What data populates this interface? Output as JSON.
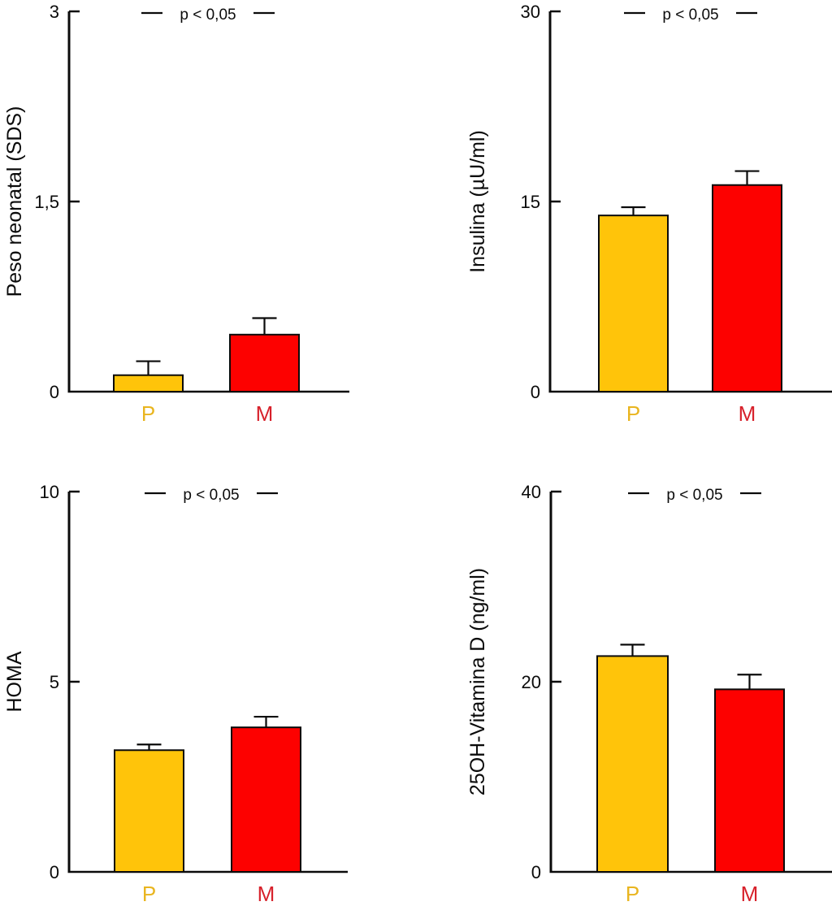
{
  "figure": {
    "background": "#ffffff",
    "axis_color": "#0b0b0b"
  },
  "chart_data": [
    {
      "type": "bar",
      "title": "",
      "xlabel": "",
      "ylabel": "Peso neonatal (SDS)",
      "categories": [
        "P",
        "M"
      ],
      "values": [
        0.13,
        0.45
      ],
      "errors_plus": [
        0.11,
        0.13
      ],
      "ylim": [
        0,
        3
      ],
      "yticks": [
        0,
        1.5,
        3
      ],
      "ytick_labels": [
        "0",
        "1,5",
        "3"
      ],
      "annotation": "p < 0,05",
      "bar_colors": [
        "#FFC40A",
        "#FD0100"
      ],
      "category_label_colors": [
        "#E9B51F",
        "#D7212B"
      ],
      "grid": false,
      "legend": "none",
      "error_direction": "up"
    },
    {
      "type": "bar",
      "title": "",
      "xlabel": "",
      "ylabel": "Insulina (µU/ml)",
      "categories": [
        "P",
        "M"
      ],
      "values": [
        13.9,
        16.3
      ],
      "errors_plus": [
        0.65,
        1.1
      ],
      "ylim": [
        0,
        30
      ],
      "yticks": [
        0,
        15,
        30
      ],
      "ytick_labels": [
        "0",
        "15",
        "30"
      ],
      "annotation": "p < 0,05",
      "bar_colors": [
        "#FFC40A",
        "#FD0100"
      ],
      "category_label_colors": [
        "#E9B51F",
        "#D7212B"
      ],
      "grid": false,
      "legend": "none",
      "error_direction": "up"
    },
    {
      "type": "bar",
      "title": "",
      "xlabel": "",
      "ylabel": "HOMA",
      "categories": [
        "P",
        "M"
      ],
      "values": [
        3.2,
        3.8
      ],
      "errors_plus": [
        0.15,
        0.28
      ],
      "ylim": [
        0,
        10
      ],
      "yticks": [
        0,
        5,
        10
      ],
      "ytick_labels": [
        "0",
        "5",
        "10"
      ],
      "annotation": "p < 0,05",
      "bar_colors": [
        "#FFC40A",
        "#FD0100"
      ],
      "category_label_colors": [
        "#E9B51F",
        "#D7212B"
      ],
      "grid": false,
      "legend": "none",
      "error_direction": "up"
    },
    {
      "type": "bar",
      "title": "",
      "xlabel": "",
      "ylabel": "25OH-Vitamina D (ng/ml)",
      "categories": [
        "P",
        "M"
      ],
      "values": [
        22.7,
        19.2
      ],
      "errors_plus": [
        1.2,
        1.55
      ],
      "ylim": [
        0,
        40
      ],
      "yticks": [
        0,
        20,
        40
      ],
      "ytick_labels": [
        "0",
        "20",
        "40"
      ],
      "annotation": "p < 0,05",
      "bar_colors": [
        "#FFC40A",
        "#FD0100"
      ],
      "category_label_colors": [
        "#E9B51F",
        "#D7212B"
      ],
      "grid": false,
      "legend": "none",
      "error_direction": "up"
    }
  ]
}
